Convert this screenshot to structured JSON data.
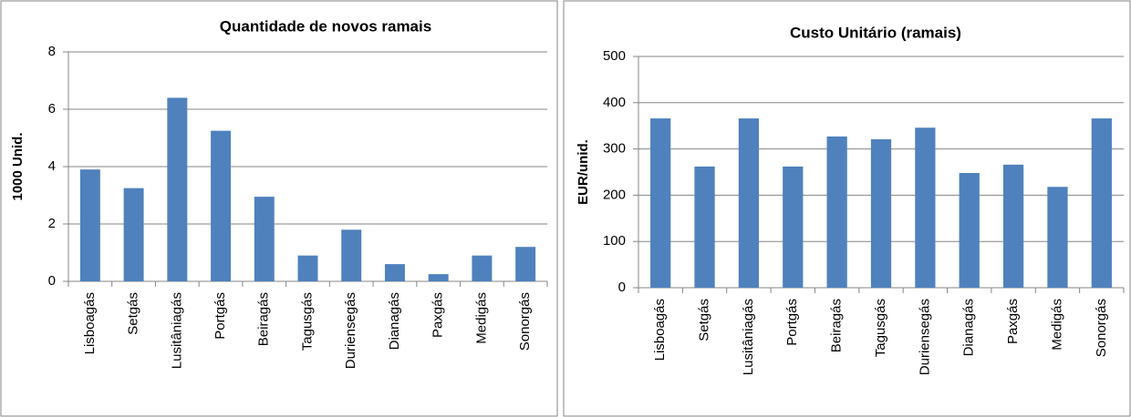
{
  "chart_data": [
    {
      "type": "bar",
      "title": "Quantidade de novos ramais",
      "ylabel": "1000 Unid.",
      "categories": [
        "Lisboagás",
        "Setgás",
        "Lusitâniagás",
        "Portgás",
        "Beiragás",
        "Tagusgás",
        "Duriensegás",
        "Dianagás",
        "Paxgás",
        "Medigás",
        "Sonorgás"
      ],
      "values": [
        3.9,
        3.25,
        6.4,
        5.25,
        2.95,
        0.9,
        1.8,
        0.6,
        0.25,
        0.9,
        1.2
      ],
      "color": "#4f81bd",
      "ylim": [
        0,
        8
      ],
      "yticks": [
        0,
        2,
        4,
        6,
        8
      ],
      "grid": true
    },
    {
      "type": "bar",
      "title": "Custo Unitário (ramais)",
      "ylabel": "EUR/unid.",
      "categories": [
        "Lisboagás",
        "Setgás",
        "Lusitâniagás",
        "Portgás",
        "Beiragás",
        "Tagusgás",
        "Duriensegás",
        "Dianagás",
        "Paxgás",
        "Medigás",
        "Sonorgás"
      ],
      "values": [
        366,
        262,
        366,
        262,
        327,
        321,
        346,
        248,
        266,
        218,
        366
      ],
      "color": "#4f81bd",
      "ylim": [
        0,
        500
      ],
      "yticks": [
        0,
        100,
        200,
        300,
        400,
        500
      ],
      "grid": true
    }
  ]
}
